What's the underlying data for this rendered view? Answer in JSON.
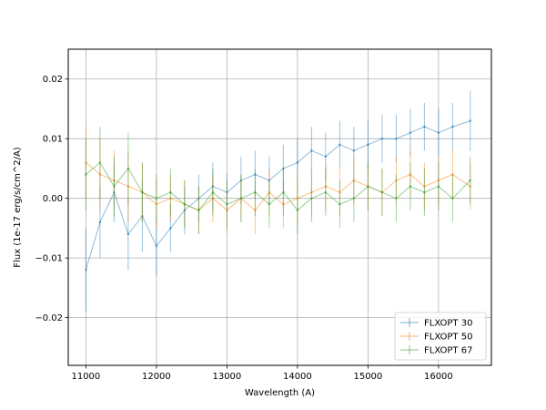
{
  "chart_data": {
    "type": "line",
    "title": "",
    "xlabel": "Wavelength (A)",
    "ylabel": "Flux (1e-17 erg/s/cm^2/A)",
    "xlim": [
      10750,
      16750
    ],
    "ylim": [
      -0.028,
      0.025
    ],
    "xticks": [
      11000,
      12000,
      13000,
      14000,
      15000,
      16000
    ],
    "yticks": [
      -0.02,
      -0.01,
      0.0,
      0.01,
      0.02
    ],
    "xtick_labels": [
      "11000",
      "12000",
      "13000",
      "14000",
      "15000",
      "16000"
    ],
    "ytick_labels": [
      "−0.02",
      "−0.01",
      "0.00",
      "0.01",
      "0.02"
    ],
    "grid": true,
    "legend_position": "lower-right",
    "errorbars": true,
    "x": [
      11000,
      11200,
      11400,
      11600,
      11800,
      12000,
      12200,
      12400,
      12600,
      12800,
      13000,
      13200,
      13400,
      13600,
      13800,
      14000,
      14200,
      14400,
      14600,
      14800,
      15000,
      15200,
      15400,
      15600,
      15800,
      16000,
      16200,
      16450
    ],
    "series": [
      {
        "name": "FLXOPT 30",
        "color": "#1f77b4",
        "values": [
          -0.012,
          -0.004,
          0.001,
          -0.006,
          -0.003,
          -0.008,
          -0.005,
          -0.002,
          0.0,
          0.002,
          0.001,
          0.003,
          0.004,
          0.003,
          0.005,
          0.006,
          0.008,
          0.007,
          0.009,
          0.008,
          0.009,
          0.01,
          0.01,
          0.011,
          0.012,
          0.011,
          0.012,
          0.013
        ],
        "errors": [
          0.007,
          0.006,
          0.005,
          0.006,
          0.006,
          0.005,
          0.004,
          0.004,
          0.004,
          0.004,
          0.003,
          0.004,
          0.004,
          0.004,
          0.004,
          0.004,
          0.004,
          0.004,
          0.004,
          0.004,
          0.004,
          0.004,
          0.004,
          0.004,
          0.004,
          0.004,
          0.004,
          0.005
        ]
      },
      {
        "name": "FLXOPT 50",
        "color": "#ff7f0e",
        "values": [
          0.006,
          0.004,
          0.003,
          0.002,
          0.001,
          -0.001,
          0.0,
          -0.001,
          -0.002,
          0.0,
          -0.002,
          0.0,
          -0.002,
          0.001,
          -0.001,
          0.0,
          0.001,
          0.002,
          0.001,
          0.003,
          0.002,
          0.001,
          0.003,
          0.004,
          0.002,
          0.003,
          0.004,
          0.002
        ],
        "errors": [
          0.006,
          0.006,
          0.005,
          0.006,
          0.005,
          0.004,
          0.004,
          0.004,
          0.004,
          0.004,
          0.004,
          0.004,
          0.004,
          0.004,
          0.004,
          0.004,
          0.004,
          0.004,
          0.004,
          0.004,
          0.004,
          0.004,
          0.004,
          0.004,
          0.004,
          0.004,
          0.004,
          0.004
        ]
      },
      {
        "name": "FLXOPT 67",
        "color": "#2ca02c",
        "values": [
          0.004,
          0.006,
          0.002,
          0.005,
          0.001,
          0.0,
          0.001,
          -0.001,
          -0.002,
          0.001,
          -0.001,
          0.0,
          0.001,
          -0.001,
          0.001,
          -0.002,
          0.0,
          0.001,
          -0.001,
          0.0,
          0.002,
          0.001,
          0.0,
          0.002,
          0.001,
          0.002,
          0.0,
          0.003
        ],
        "errors": [
          0.006,
          0.006,
          0.005,
          0.006,
          0.005,
          0.004,
          0.004,
          0.004,
          0.004,
          0.004,
          0.004,
          0.004,
          0.004,
          0.004,
          0.004,
          0.004,
          0.004,
          0.004,
          0.004,
          0.004,
          0.004,
          0.004,
          0.004,
          0.004,
          0.004,
          0.004,
          0.004,
          0.004
        ]
      }
    ]
  }
}
